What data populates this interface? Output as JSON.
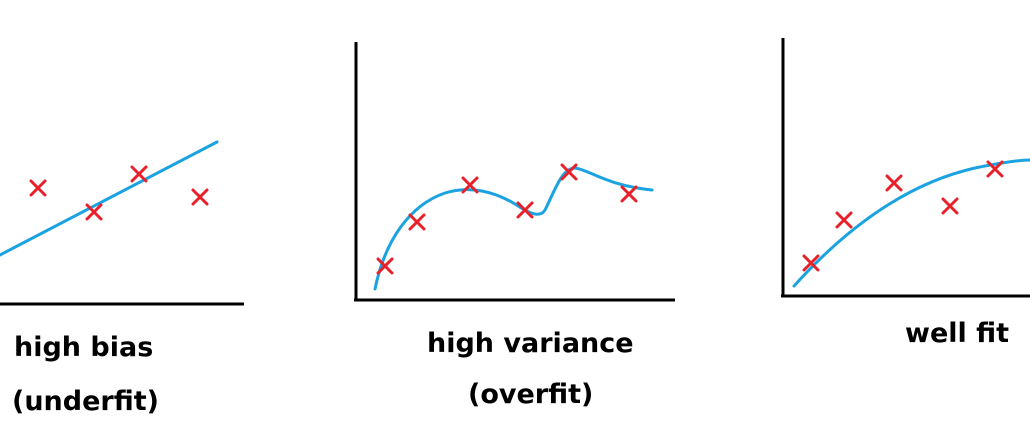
{
  "panels": [
    {
      "title": "high bias",
      "subtitle": "(underfit)",
      "fit": "linear"
    },
    {
      "title": "high variance",
      "subtitle": "(overfit)",
      "fit": "wiggly"
    },
    {
      "title": "well fit",
      "subtitle": "",
      "fit": "smooth-curve"
    }
  ],
  "colors": {
    "axis": "#000000",
    "curve": "#1aa3e0",
    "marker": "#e8202a"
  },
  "icons": {
    "data_point": "x-marker-icon"
  }
}
